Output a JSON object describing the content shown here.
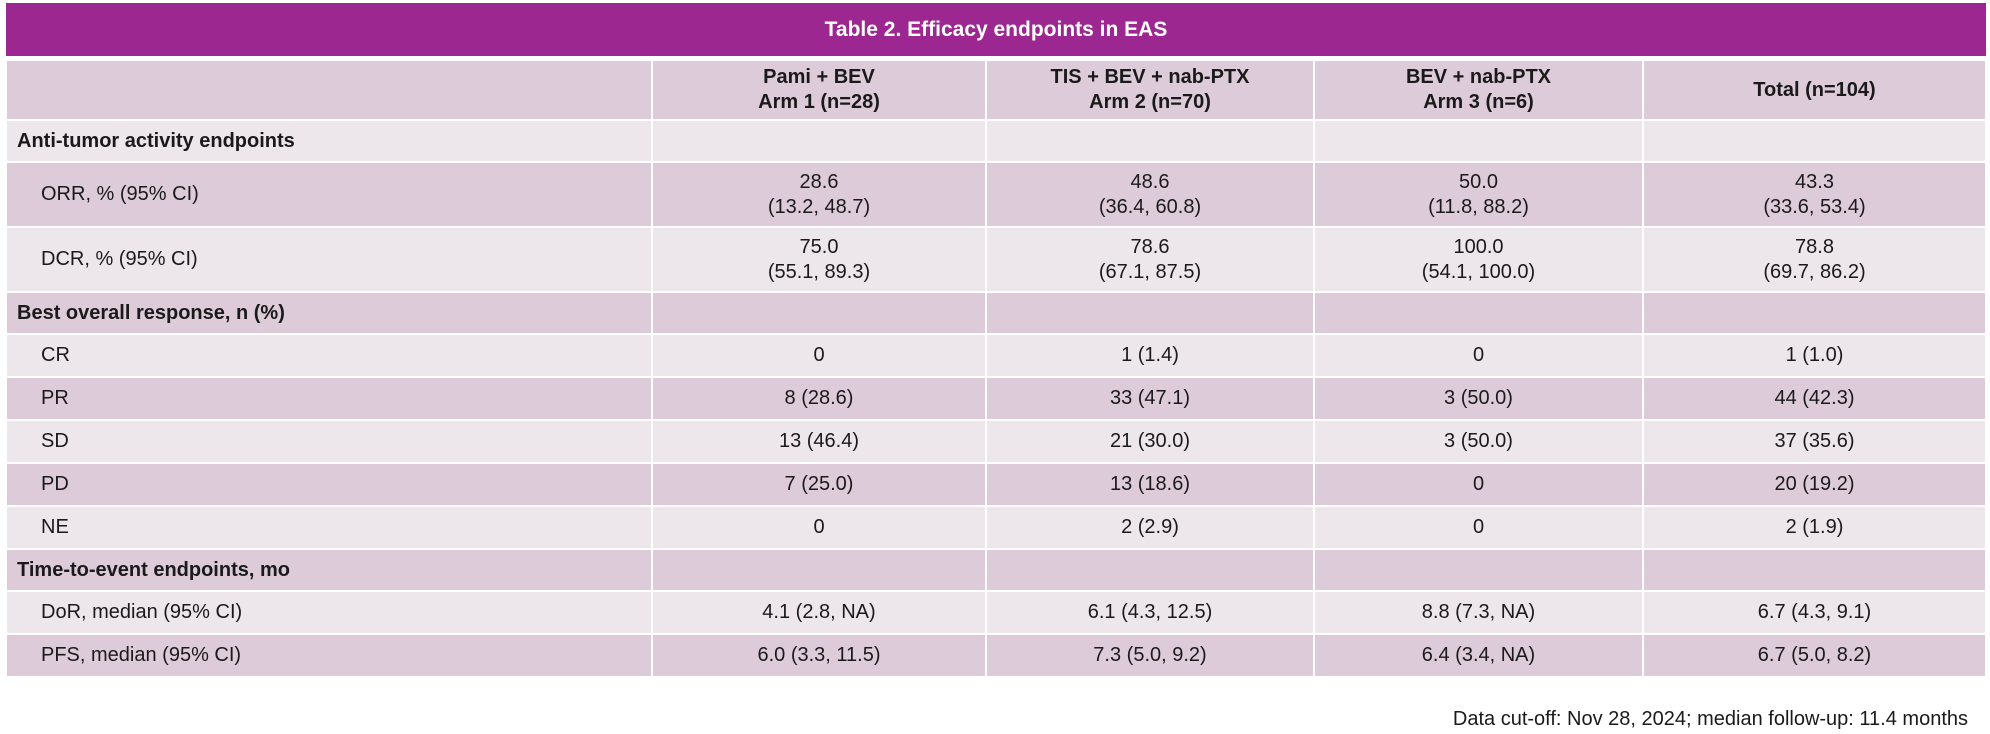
{
  "title": "Table 2. Efficacy endpoints in EAS",
  "columns": [
    {
      "line1": "",
      "line2": ""
    },
    {
      "line1": "Pami + BEV",
      "line2": "Arm 1 (n=28)"
    },
    {
      "line1": "TIS + BEV + nab-PTX",
      "line2": "Arm 2 (n=70)"
    },
    {
      "line1": "BEV + nab-PTX",
      "line2": "Arm 3 (n=6)"
    },
    {
      "line1": "Total (n=104)",
      "line2": ""
    }
  ],
  "sections": [
    {
      "label": "Anti-tumor activity endpoints",
      "rows": [
        {
          "label": "ORR, % (95% CI)",
          "cells": [
            {
              "l1": "28.6",
              "l2": "(13.2, 48.7)"
            },
            {
              "l1": "48.6",
              "l2": "(36.4, 60.8)"
            },
            {
              "l1": "50.0",
              "l2": "(11.8, 88.2)"
            },
            {
              "l1": "43.3",
              "l2": "(33.6, 53.4)"
            }
          ]
        },
        {
          "label": "DCR, % (95% CI)",
          "cells": [
            {
              "l1": "75.0",
              "l2": "(55.1, 89.3)"
            },
            {
              "l1": "78.6",
              "l2": "(67.1, 87.5)"
            },
            {
              "l1": "100.0",
              "l2": "(54.1, 100.0)"
            },
            {
              "l1": "78.8",
              "l2": "(69.7, 86.2)"
            }
          ]
        }
      ]
    },
    {
      "label": "Best overall response, n (%)",
      "rows": [
        {
          "label": "CR",
          "cells": [
            "0",
            "1 (1.4)",
            "0",
            "1 (1.0)"
          ]
        },
        {
          "label": "PR",
          "cells": [
            "8 (28.6)",
            "33 (47.1)",
            "3 (50.0)",
            "44 (42.3)"
          ]
        },
        {
          "label": "SD",
          "cells": [
            "13 (46.4)",
            "21 (30.0)",
            "3 (50.0)",
            "37 (35.6)"
          ]
        },
        {
          "label": "PD",
          "cells": [
            "7 (25.0)",
            "13 (18.6)",
            "0",
            "20 (19.2)"
          ]
        },
        {
          "label": "NE",
          "cells": [
            "0",
            "2 (2.9)",
            "0",
            "2 (1.9)"
          ]
        }
      ]
    },
    {
      "label": "Time-to-event endpoints, mo",
      "rows": [
        {
          "label": "DoR, median (95% CI)",
          "cells": [
            "4.1 (2.8, NA)",
            "6.1 (4.3, 12.5)",
            "8.8 (7.3, NA)",
            "6.7 (4.3, 9.1)"
          ]
        },
        {
          "label": "PFS, median (95% CI)",
          "cells": [
            "6.0 (3.3, 11.5)",
            "7.3 (5.0, 9.2)",
            "6.4 (3.4, NA)",
            "6.7 (5.0, 8.2)"
          ]
        }
      ]
    }
  ],
  "footnote": "Data cut-off: Nov 28, 2024; median follow-up: 11.4 months",
  "colors": {
    "title_bg": "#9c2790",
    "row_dark": "#ddcbda",
    "row_light": "#ede6eb"
  }
}
